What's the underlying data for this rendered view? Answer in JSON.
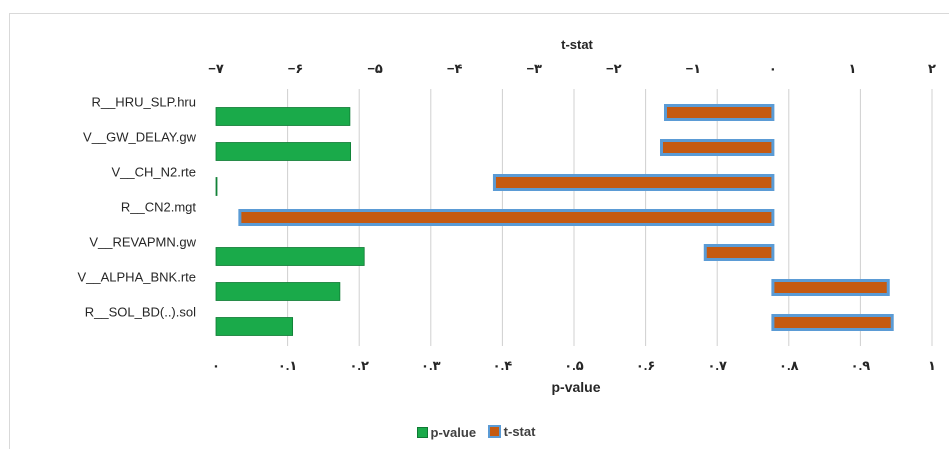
{
  "chart_data": {
    "type": "bar",
    "orientation": "horizontal",
    "categories": [
      "R__HRU_SLP.hru",
      "V__GW_DELAY.gw",
      "V__CH_N2.rte",
      "R__CN2.mgt",
      "V__REVAPMN.gw",
      "V__ALPHA_BNK.rte",
      "R__SOL_BD(..).sol"
    ],
    "series": [
      {
        "name": "p-value",
        "axis": "bottom",
        "color": "#1aaa4a",
        "values": [
          0.187,
          0.188,
          0.001,
          0.0,
          0.207,
          0.173,
          0.107
        ]
      },
      {
        "name": "t-stat",
        "axis": "top",
        "color": "#c55a11",
        "border_color": "#5b9bd5",
        "values": [
          -1.35,
          -1.4,
          -3.5,
          -6.7,
          -0.85,
          1.45,
          1.5
        ]
      }
    ],
    "x_bottom": {
      "label": "p-value",
      "lim": [
        0,
        1
      ],
      "ticks": [
        0,
        0.1,
        0.2,
        0.3,
        0.4,
        0.5,
        0.6,
        0.7,
        0.8,
        0.9,
        1
      ],
      "tick_labels": [
        "۰",
        "۰.۱",
        "۰.۲",
        "۰.۳",
        "۰.۴",
        "۰.۵",
        "۰.۶",
        "۰.۷",
        "۰.۸",
        "۰.۹",
        "۱"
      ]
    },
    "x_top": {
      "label": "t-stat",
      "lim": [
        -7,
        2
      ],
      "ticks": [
        -7,
        -6,
        -5,
        -4,
        -3,
        -2,
        -1,
        0,
        1,
        2
      ],
      "tick_labels": [
        "−۷",
        "−۶",
        "−۵",
        "−۴",
        "−۳",
        "−۲",
        "−۱",
        "۰",
        "۱",
        "۲"
      ]
    },
    "grid": "vertical",
    "legend": {
      "position": "bottom",
      "entries": [
        "p-value",
        "t-stat"
      ]
    }
  }
}
